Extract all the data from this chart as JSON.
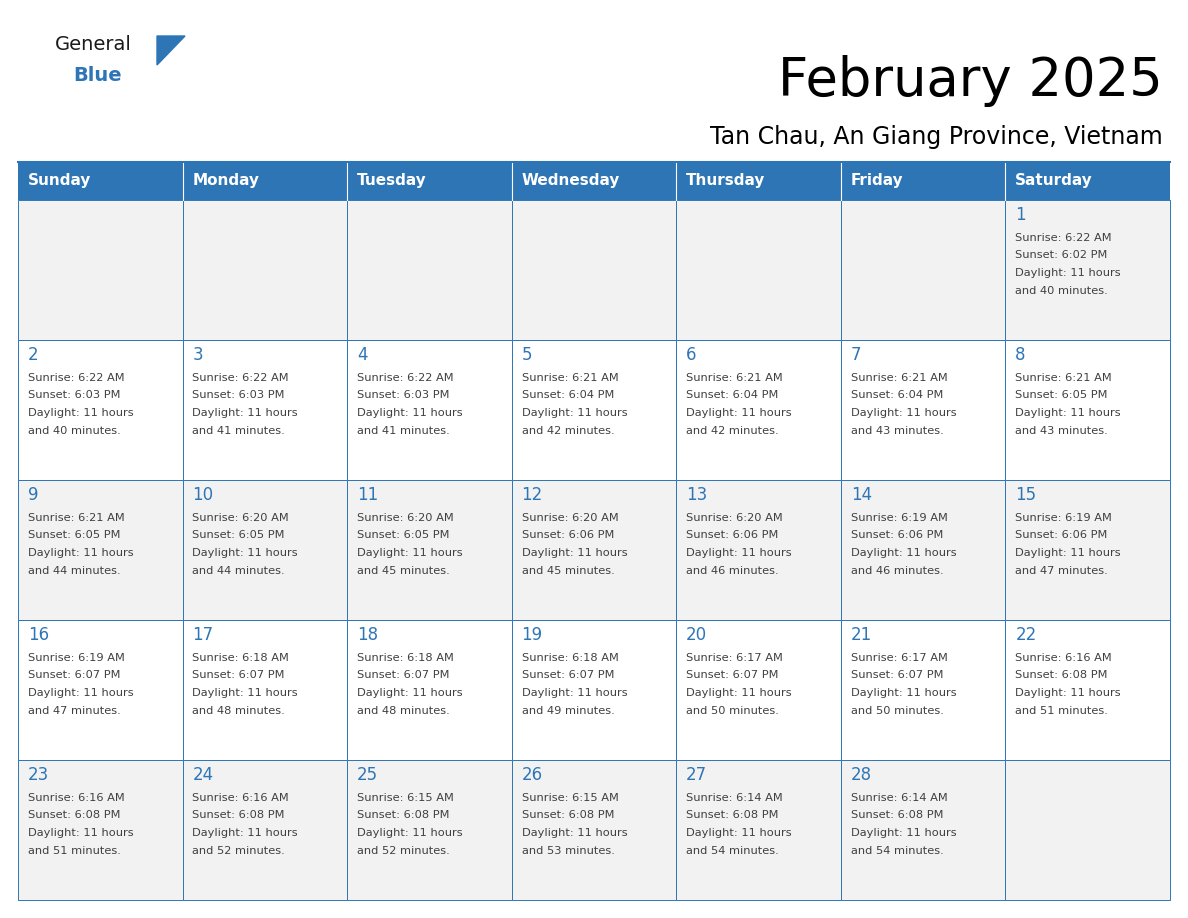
{
  "title": "February 2025",
  "subtitle": "Tan Chau, An Giang Province, Vietnam",
  "days_of_week": [
    "Sunday",
    "Monday",
    "Tuesday",
    "Wednesday",
    "Thursday",
    "Friday",
    "Saturday"
  ],
  "header_bg": "#2E75B6",
  "header_text_color": "#FFFFFF",
  "cell_border_color": "#2E75B6",
  "day_number_color": "#2E75B6",
  "cell_text_color": "#404040",
  "cell_bg_color": "#F2F2F2",
  "cell_bg_alt": "#FFFFFF",
  "title_color": "#000000",
  "subtitle_color": "#000000",
  "logo_general_color": "#1a1a1a",
  "logo_blue_color": "#2E75B6",
  "background_color": "#FFFFFF",
  "calendar_data": [
    [
      null,
      null,
      null,
      null,
      null,
      null,
      1
    ],
    [
      2,
      3,
      4,
      5,
      6,
      7,
      8
    ],
    [
      9,
      10,
      11,
      12,
      13,
      14,
      15
    ],
    [
      16,
      17,
      18,
      19,
      20,
      21,
      22
    ],
    [
      23,
      24,
      25,
      26,
      27,
      28,
      null
    ]
  ],
  "sun_data": {
    "1": {
      "rise": "6:22 AM",
      "set": "6:02 PM",
      "dl1": "Daylight: 11 hours",
      "dl2": "and 40 minutes."
    },
    "2": {
      "rise": "6:22 AM",
      "set": "6:03 PM",
      "dl1": "Daylight: 11 hours",
      "dl2": "and 40 minutes."
    },
    "3": {
      "rise": "6:22 AM",
      "set": "6:03 PM",
      "dl1": "Daylight: 11 hours",
      "dl2": "and 41 minutes."
    },
    "4": {
      "rise": "6:22 AM",
      "set": "6:03 PM",
      "dl1": "Daylight: 11 hours",
      "dl2": "and 41 minutes."
    },
    "5": {
      "rise": "6:21 AM",
      "set": "6:04 PM",
      "dl1": "Daylight: 11 hours",
      "dl2": "and 42 minutes."
    },
    "6": {
      "rise": "6:21 AM",
      "set": "6:04 PM",
      "dl1": "Daylight: 11 hours",
      "dl2": "and 42 minutes."
    },
    "7": {
      "rise": "6:21 AM",
      "set": "6:04 PM",
      "dl1": "Daylight: 11 hours",
      "dl2": "and 43 minutes."
    },
    "8": {
      "rise": "6:21 AM",
      "set": "6:05 PM",
      "dl1": "Daylight: 11 hours",
      "dl2": "and 43 minutes."
    },
    "9": {
      "rise": "6:21 AM",
      "set": "6:05 PM",
      "dl1": "Daylight: 11 hours",
      "dl2": "and 44 minutes."
    },
    "10": {
      "rise": "6:20 AM",
      "set": "6:05 PM",
      "dl1": "Daylight: 11 hours",
      "dl2": "and 44 minutes."
    },
    "11": {
      "rise": "6:20 AM",
      "set": "6:05 PM",
      "dl1": "Daylight: 11 hours",
      "dl2": "and 45 minutes."
    },
    "12": {
      "rise": "6:20 AM",
      "set": "6:06 PM",
      "dl1": "Daylight: 11 hours",
      "dl2": "and 45 minutes."
    },
    "13": {
      "rise": "6:20 AM",
      "set": "6:06 PM",
      "dl1": "Daylight: 11 hours",
      "dl2": "and 46 minutes."
    },
    "14": {
      "rise": "6:19 AM",
      "set": "6:06 PM",
      "dl1": "Daylight: 11 hours",
      "dl2": "and 46 minutes."
    },
    "15": {
      "rise": "6:19 AM",
      "set": "6:06 PM",
      "dl1": "Daylight: 11 hours",
      "dl2": "and 47 minutes."
    },
    "16": {
      "rise": "6:19 AM",
      "set": "6:07 PM",
      "dl1": "Daylight: 11 hours",
      "dl2": "and 47 minutes."
    },
    "17": {
      "rise": "6:18 AM",
      "set": "6:07 PM",
      "dl1": "Daylight: 11 hours",
      "dl2": "and 48 minutes."
    },
    "18": {
      "rise": "6:18 AM",
      "set": "6:07 PM",
      "dl1": "Daylight: 11 hours",
      "dl2": "and 48 minutes."
    },
    "19": {
      "rise": "6:18 AM",
      "set": "6:07 PM",
      "dl1": "Daylight: 11 hours",
      "dl2": "and 49 minutes."
    },
    "20": {
      "rise": "6:17 AM",
      "set": "6:07 PM",
      "dl1": "Daylight: 11 hours",
      "dl2": "and 50 minutes."
    },
    "21": {
      "rise": "6:17 AM",
      "set": "6:07 PM",
      "dl1": "Daylight: 11 hours",
      "dl2": "and 50 minutes."
    },
    "22": {
      "rise": "6:16 AM",
      "set": "6:08 PM",
      "dl1": "Daylight: 11 hours",
      "dl2": "and 51 minutes."
    },
    "23": {
      "rise": "6:16 AM",
      "set": "6:08 PM",
      "dl1": "Daylight: 11 hours",
      "dl2": "and 51 minutes."
    },
    "24": {
      "rise": "6:16 AM",
      "set": "6:08 PM",
      "dl1": "Daylight: 11 hours",
      "dl2": "and 52 minutes."
    },
    "25": {
      "rise": "6:15 AM",
      "set": "6:08 PM",
      "dl1": "Daylight: 11 hours",
      "dl2": "and 52 minutes."
    },
    "26": {
      "rise": "6:15 AM",
      "set": "6:08 PM",
      "dl1": "Daylight: 11 hours",
      "dl2": "and 53 minutes."
    },
    "27": {
      "rise": "6:14 AM",
      "set": "6:08 PM",
      "dl1": "Daylight: 11 hours",
      "dl2": "and 54 minutes."
    },
    "28": {
      "rise": "6:14 AM",
      "set": "6:08 PM",
      "dl1": "Daylight: 11 hours",
      "dl2": "and 54 minutes."
    }
  }
}
